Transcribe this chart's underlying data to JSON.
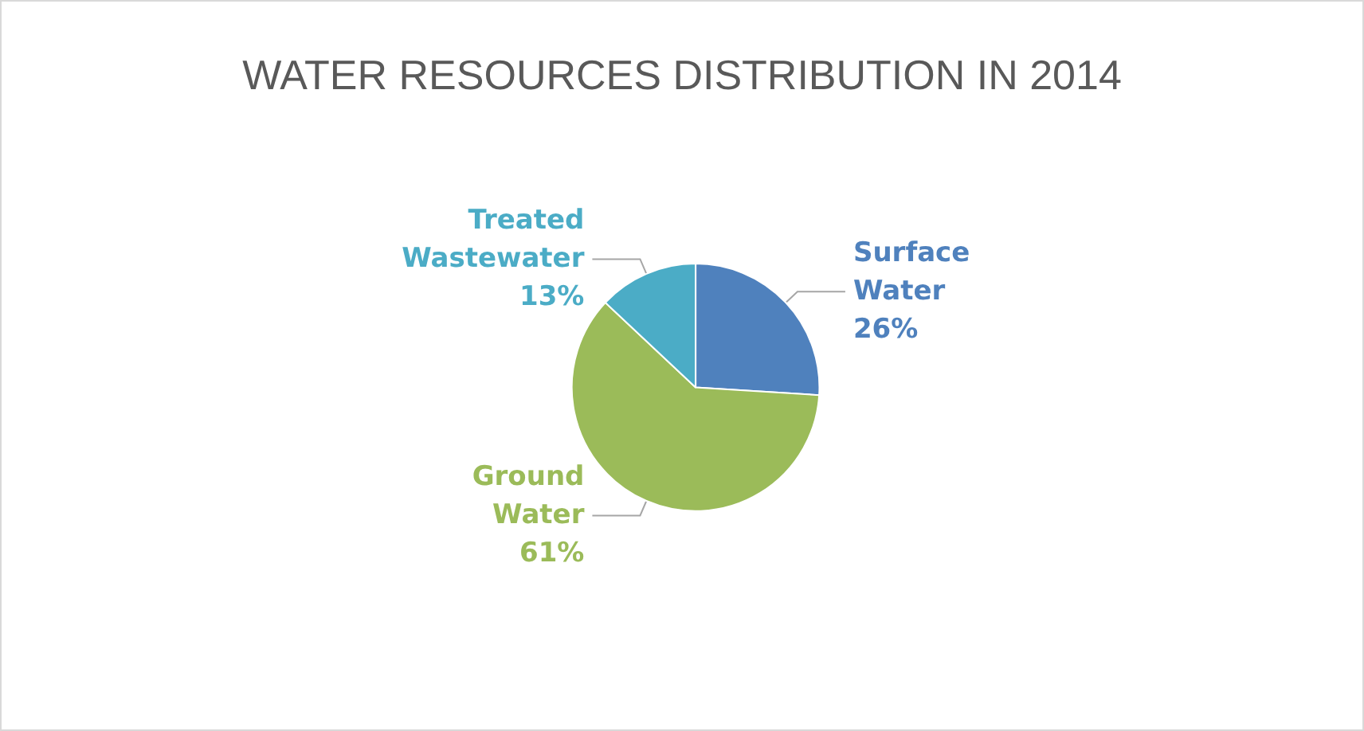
{
  "chart_data": {
    "type": "pie",
    "title": "WATER RESOURCES DISTRIBUTION IN 2014",
    "categories": [
      "Surface Water",
      "Ground Water",
      "Treated Wastewater"
    ],
    "values": [
      26,
      61,
      13
    ],
    "colors": [
      "#4f81bd",
      "#9bbb59",
      "#4bacc6"
    ],
    "value_labels": [
      "26%",
      "61%",
      "13%"
    ],
    "legend": false
  }
}
